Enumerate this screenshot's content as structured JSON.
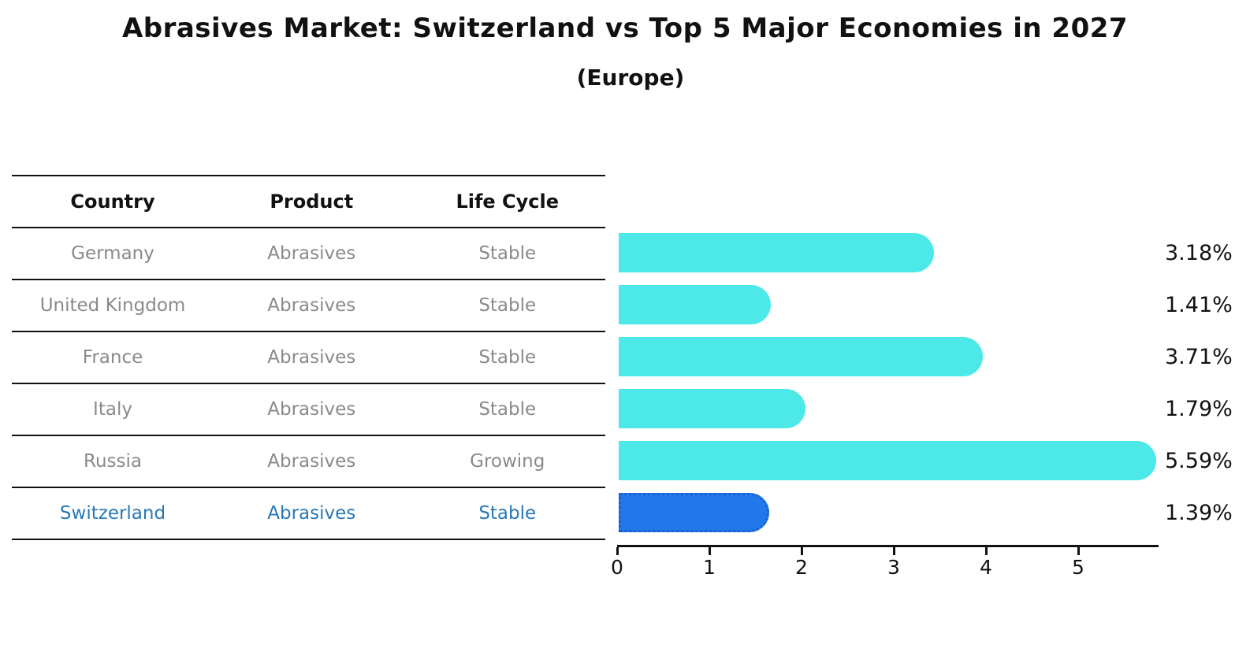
{
  "title": "Abrasives Market: Switzerland vs Top 5 Major Economies in 2027",
  "subtitle": "(Europe)",
  "table": {
    "headers": [
      "Country",
      "Product",
      "Life Cycle"
    ],
    "rows": [
      {
        "country": "Germany",
        "product": "Abrasives",
        "life_cycle": "Stable",
        "highlight": false
      },
      {
        "country": "United Kingdom",
        "product": "Abrasives",
        "life_cycle": "Stable",
        "highlight": false
      },
      {
        "country": "France",
        "product": "Abrasives",
        "life_cycle": "Stable",
        "highlight": false
      },
      {
        "country": "Italy",
        "product": "Abrasives",
        "life_cycle": "Stable",
        "highlight": false
      },
      {
        "country": "Russia",
        "product": "Abrasives",
        "life_cycle": "Growing",
        "highlight": false
      },
      {
        "country": "Switzerland",
        "product": "Abrasives",
        "life_cycle": "Stable",
        "highlight": true
      }
    ]
  },
  "chart_data": {
    "type": "bar",
    "orientation": "horizontal",
    "categories": [
      "Germany",
      "United Kingdom",
      "France",
      "Italy",
      "Russia",
      "Switzerland"
    ],
    "values": [
      3.18,
      1.41,
      3.71,
      1.79,
      5.59,
      1.39
    ],
    "value_labels": [
      "3.18%",
      "1.41%",
      "3.71%",
      "1.79%",
      "5.59%",
      "1.39%"
    ],
    "highlight_index": 5,
    "x_ticks": [
      "0",
      "1",
      "2",
      "3",
      "4",
      "5"
    ],
    "xlim": [
      0,
      5.87
    ],
    "grid": false,
    "legend": false,
    "bar_color": "#4de8e8",
    "highlight_bar_color": "#2178e8",
    "highlight_border_color": "#1a5fd0",
    "highlight_text_color": "#2878b8",
    "row_text_color": "#8a8a8a",
    "axis_color": "#111111"
  }
}
